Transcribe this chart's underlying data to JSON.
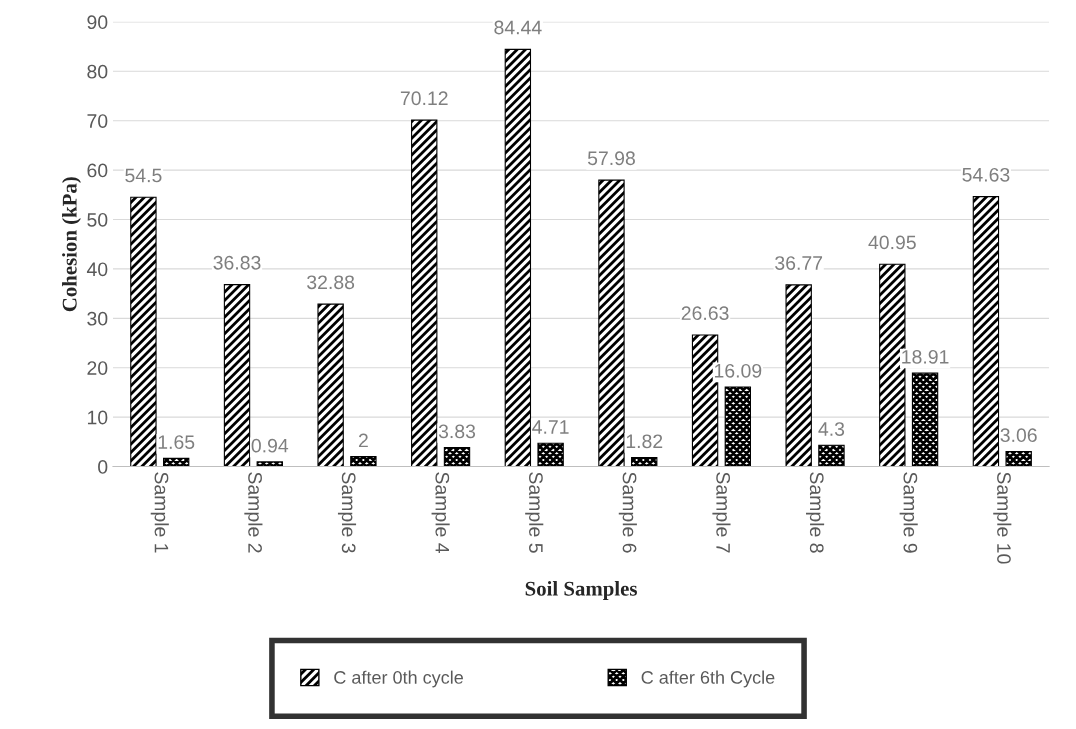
{
  "chart_data": {
    "type": "bar",
    "xlabel": "Soil Samples",
    "ylabel": "Cohesion (kPa)",
    "categories": [
      "Sample 1",
      "Sample 2",
      "Sample 3",
      "Sample 4",
      "Sample 5",
      "Sample 6",
      "Sample 7",
      "Sample 8",
      "Sample 9",
      "Sample 10"
    ],
    "series": [
      {
        "name": "C after 0th cycle",
        "color": "#000000",
        "values": [
          54.5,
          36.83,
          32.88,
          70.12,
          84.44,
          57.98,
          26.63,
          36.77,
          40.95,
          54.63
        ]
      },
      {
        "name": "C after 6th Cycle",
        "color": "#000000",
        "values": [
          1.65,
          0.94,
          2,
          3.83,
          4.71,
          1.82,
          16.09,
          4.3,
          18.91,
          3.06
        ]
      }
    ],
    "ylim": [
      0,
      90
    ],
    "yticks": [
      0,
      10,
      20,
      30,
      40,
      50,
      60,
      70,
      80,
      90
    ],
    "grid": "y",
    "legend": "bottom",
    "data_labels": true
  }
}
